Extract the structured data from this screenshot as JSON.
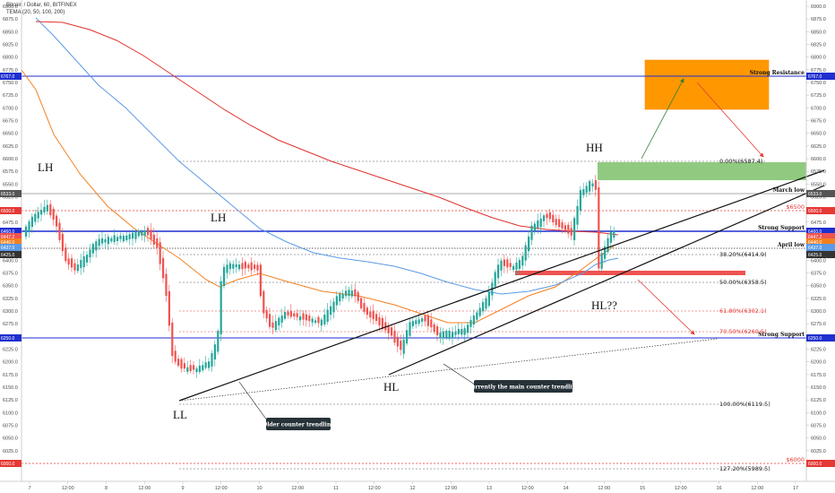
{
  "header": {
    "title": "Bitcoin / Dollar, 60, BITFINEX",
    "indicator": "TEMA (20, 50, 100, 200)"
  },
  "chart_data": {
    "type": "candlestick",
    "y_ticks": [
      6000,
      6025,
      6050,
      6075,
      6100,
      6125,
      6150,
      6175,
      6200,
      6225,
      6250,
      6275,
      6300,
      6325,
      6350,
      6375,
      6400,
      6425,
      6450,
      6475,
      6500,
      6525,
      6550,
      6575,
      6600,
      6625,
      6650,
      6675,
      6700,
      6725,
      6750,
      6775,
      6800,
      6825,
      6850,
      6875,
      6900
    ],
    "ylim": [
      5975,
      6910
    ],
    "x_ticks": [
      "7",
      "12:00",
      "8",
      "12:00",
      "9",
      "12:00",
      "10",
      "12:00",
      "11",
      "12:00",
      "12",
      "12:00",
      "13",
      "12:00",
      "14",
      "12:00",
      "15",
      "12:00",
      "16",
      "12:00",
      "17"
    ],
    "price_labels": [
      "6767.0",
      "6533.0",
      "6500.0",
      "6460.0",
      "6447.2",
      "6440.0",
      "6437.0",
      "6425.0",
      "6250.0",
      "6000.0"
    ],
    "horizontal_lines": [
      {
        "label": "Strong Resistance",
        "price": 6767,
        "color": "#1f2fd0"
      },
      {
        "label": "March low",
        "price": 6533,
        "color": "#555555"
      },
      {
        "label": "$6500",
        "price": 6500,
        "color": "#e53935"
      },
      {
        "label": "Strong Support",
        "price": 6460,
        "color": "#1f2fd0"
      },
      {
        "label": "April low",
        "price": 6425,
        "color": "#333333"
      },
      {
        "label": "Strong Support",
        "price": 6250,
        "color": "#1f2fd0"
      },
      {
        "label": "$6000",
        "price": 6000,
        "color": "#e53935"
      }
    ],
    "fibonacci": [
      {
        "label": "0.00%(6587.4)",
        "price": 6587.4,
        "color": "#555555"
      },
      {
        "label": "38.20%(6414.9)",
        "price": 6414.9,
        "color": "#555555"
      },
      {
        "label": "50.00%(6358.5)",
        "price": 6358.5,
        "color": "#555555"
      },
      {
        "label": "61.80%(6302.1)",
        "price": 6302.1,
        "color": "#e53935"
      },
      {
        "label": "70.50%(6260.5)",
        "price": 6260.5,
        "color": "#e53935"
      },
      {
        "label": "100.00%(6119.5)",
        "price": 6119.5,
        "color": "#555555"
      },
      {
        "label": "127.20%(5989.5)",
        "price": 5989.5,
        "color": "#555555"
      }
    ],
    "annotations": [
      "LH",
      "LH",
      "HH",
      "LL",
      "HL",
      "HL??"
    ],
    "callouts": [
      "Older counter trendline",
      "Currently the main counter trendline"
    ],
    "zones": [
      {
        "kind": "target",
        "price_top": 6800,
        "price_bottom": 6700,
        "color": "#ff9800"
      },
      {
        "kind": "green",
        "price_top": 6593,
        "price_bottom": 6560,
        "color": "#7cc16a"
      }
    ],
    "ma_colors": [
      "#f4801f",
      "#5b9ae6",
      "#e0312c"
    ],
    "up_color": "#26a69a",
    "down_color": "#ef5350"
  }
}
